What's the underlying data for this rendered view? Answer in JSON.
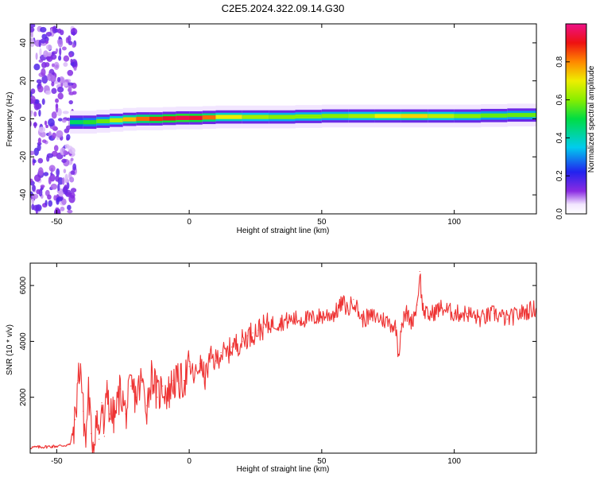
{
  "figure": {
    "title": "C2E5.2024.322.09.14.G30"
  },
  "colors": {
    "snr_line": "#ee3333",
    "ridge_core": "#dd2222",
    "background": "#ffffff",
    "axis": "#000000"
  },
  "chart_data": [
    {
      "type": "heatmap",
      "title": "C2E5.2024.322.09.14.G30",
      "xlabel": "Height of straight line (km)",
      "ylabel": "Frequency (Hz)",
      "xlim": [
        -60,
        131
      ],
      "ylim": [
        -50,
        50
      ],
      "xticks": [
        -50,
        0,
        50,
        100
      ],
      "yticks": [
        -40,
        -20,
        0,
        20,
        40
      ],
      "colorbar": {
        "label": "Normalized spectral amplitude",
        "range": [
          0,
          1
        ],
        "ticks": [
          0.0,
          0.2,
          0.4,
          0.6,
          0.8
        ],
        "colormap": "rainbow (white - violet - blue - cyan - green - yellow - red - magenta)"
      },
      "ridge": {
        "description": "Narrow spectral ridge near 0 Hz; scattered noise below -45 km",
        "x": [
          -45,
          -40,
          -35,
          -30,
          -25,
          -20,
          -15,
          -10,
          -5,
          0,
          5,
          10,
          20,
          30,
          40,
          50,
          60,
          70,
          80,
          90,
          100,
          110,
          120,
          131
        ],
        "center_hz": [
          -1.5,
          -2.0,
          -1.5,
          -1.0,
          -0.5,
          0.0,
          0.0,
          0.0,
          0.5,
          0.5,
          0.5,
          1.0,
          1.0,
          1.0,
          1.0,
          1.5,
          1.5,
          1.5,
          1.5,
          1.5,
          1.5,
          1.5,
          2.0,
          2.0
        ],
        "peak_amplitude": [
          0.45,
          0.5,
          0.55,
          0.6,
          0.7,
          0.8,
          0.85,
          0.9,
          0.95,
          0.95,
          0.9,
          0.75,
          0.65,
          0.6,
          0.6,
          0.6,
          0.6,
          0.65,
          0.75,
          0.7,
          0.6,
          0.6,
          0.55,
          0.6
        ]
      }
    },
    {
      "type": "line",
      "xlabel": "Height of straight line (km)",
      "ylabel": "SNR (10 * v/v)",
      "xlim": [
        -60,
        131
      ],
      "ylim": [
        0,
        6800
      ],
      "xticks": [
        -50,
        0,
        50,
        100
      ],
      "yticks": [
        2000,
        4000,
        6000
      ],
      "series": [
        {
          "x": [
            -60,
            -50,
            -45,
            -43,
            -42,
            -41,
            -40,
            -39,
            -38,
            -37,
            -36,
            -35,
            -34,
            -33,
            -32,
            -31,
            -30,
            -28,
            -26,
            -24,
            -22,
            -20,
            -18,
            -16,
            -14,
            -12,
            -10,
            -8,
            -6,
            -4,
            -2,
            0,
            2,
            4,
            6,
            8,
            10,
            12,
            14,
            16,
            18,
            20,
            22,
            24,
            26,
            28,
            30,
            35,
            40,
            45,
            50,
            55,
            58,
            60,
            62,
            65,
            70,
            75,
            78,
            79,
            80,
            82,
            84,
            86,
            87,
            88,
            90,
            95,
            100,
            105,
            110,
            115,
            120,
            125,
            131
          ],
          "values": [
            200,
            250,
            300,
            1200,
            2600,
            3200,
            1500,
            400,
            2300,
            700,
            300,
            1500,
            500,
            1800,
            600,
            2600,
            1400,
            1300,
            2300,
            1400,
            2400,
            2000,
            2600,
            1700,
            2900,
            2000,
            2400,
            2100,
            2600,
            2500,
            2600,
            3100,
            2700,
            3200,
            2700,
            3400,
            3300,
            3600,
            3500,
            3800,
            3900,
            4000,
            4200,
            4300,
            4400,
            4500,
            4600,
            4700,
            4800,
            4800,
            4900,
            5000,
            5400,
            5100,
            5500,
            4800,
            4900,
            4700,
            4500,
            3500,
            4600,
            5000,
            4700,
            5300,
            6500,
            5200,
            4900,
            5200,
            5000,
            5000,
            4800,
            5000,
            4800,
            5000,
            5200
          ]
        }
      ]
    }
  ]
}
